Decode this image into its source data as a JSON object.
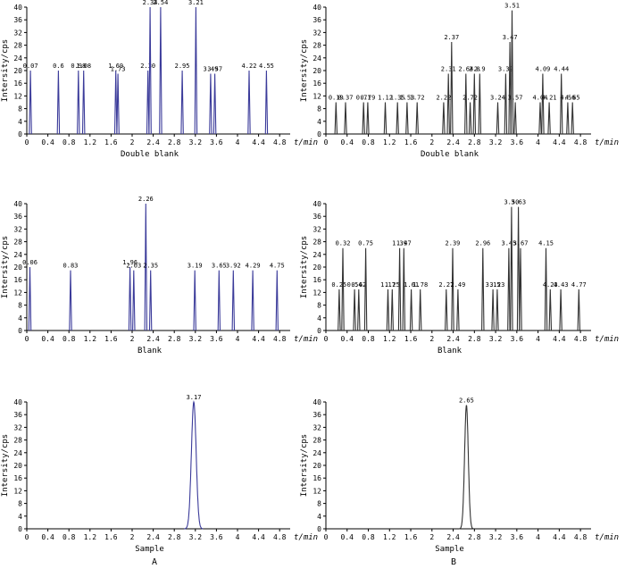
{
  "figure": {
    "colors": {
      "A": "#3b3b9a",
      "B": "#333333",
      "axis": "#000000"
    },
    "columns": [
      "A",
      "B"
    ]
  },
  "chart_data": [
    {
      "id": "A-double-blank",
      "column": "A",
      "type": "line",
      "title": "Double blank",
      "xlabel": "t/min",
      "ylabel": "Intersity/cps",
      "xlim": [
        0,
        5
      ],
      "ylim": [
        0,
        40
      ],
      "xticks": [
        "0",
        "0.4",
        "0.8",
        "1.2",
        "1.6",
        "2",
        "2.4",
        "2.8",
        "3.2",
        "3.6",
        "4",
        "4.4",
        "4.8"
      ],
      "yticks": [
        "0",
        "4",
        "8",
        "12",
        "16",
        "20",
        "24",
        "28",
        "32",
        "36",
        "40"
      ],
      "peaks": [
        {
          "t": 0.07,
          "h": 20,
          "label": "0.07"
        },
        {
          "t": 0.6,
          "h": 20,
          "label": "0.6"
        },
        {
          "t": 0.98,
          "h": 20,
          "label": "0.98"
        },
        {
          "t": 1.08,
          "h": 20,
          "label": "1.08"
        },
        {
          "t": 1.69,
          "h": 20,
          "label": "1.69"
        },
        {
          "t": 1.73,
          "h": 19,
          "label": "1.73"
        },
        {
          "t": 2.3,
          "h": 20,
          "label": "2.30"
        },
        {
          "t": 2.34,
          "h": 40,
          "label": "2.34"
        },
        {
          "t": 2.54,
          "h": 40,
          "label": "2.54"
        },
        {
          "t": 2.95,
          "h": 20,
          "label": "2.95"
        },
        {
          "t": 3.21,
          "h": 40,
          "label": "3.21"
        },
        {
          "t": 3.49,
          "h": 19,
          "label": "3.49"
        },
        {
          "t": 3.57,
          "h": 19,
          "label": "3.57"
        },
        {
          "t": 4.22,
          "h": 20,
          "label": "4.22"
        },
        {
          "t": 4.55,
          "h": 20,
          "label": "4.55"
        }
      ]
    },
    {
      "id": "B-double-blank",
      "column": "B",
      "type": "line",
      "title": "Double blank",
      "xlabel": "t/min",
      "ylabel": "Intersity/cps",
      "xlim": [
        0,
        5
      ],
      "ylim": [
        0,
        40
      ],
      "xticks": [
        "0",
        "0.4",
        "0.8",
        "1.2",
        "1.6",
        "2",
        "2.4",
        "2.8",
        "3.2",
        "3.6",
        "4",
        "4.4",
        "4.8"
      ],
      "yticks": [
        "0",
        "4",
        "8",
        "12",
        "16",
        "20",
        "24",
        "28",
        "32",
        "36",
        "40"
      ],
      "peaks": [
        {
          "t": 0.19,
          "h": 10,
          "label": "0.19"
        },
        {
          "t": 0.37,
          "h": 10,
          "label": "0.37"
        },
        {
          "t": 0.71,
          "h": 10,
          "label": "0.71"
        },
        {
          "t": 0.79,
          "h": 10,
          "label": "0.79"
        },
        {
          "t": 1.12,
          "h": 10,
          "label": "1.12"
        },
        {
          "t": 1.35,
          "h": 10,
          "label": "1.35"
        },
        {
          "t": 1.53,
          "h": 10,
          "label": "1.53"
        },
        {
          "t": 1.72,
          "h": 10,
          "label": "1.72"
        },
        {
          "t": 2.22,
          "h": 10,
          "label": "2.22"
        },
        {
          "t": 2.31,
          "h": 19,
          "label": "2.31"
        },
        {
          "t": 2.37,
          "h": 29,
          "label": "2.37"
        },
        {
          "t": 2.64,
          "h": 19,
          "label": "2.64"
        },
        {
          "t": 2.8,
          "h": 19,
          "label": "2.8"
        },
        {
          "t": 2.72,
          "h": 10,
          "label": "2.72"
        },
        {
          "t": 2.9,
          "h": 19,
          "label": "2.9"
        },
        {
          "t": 3.24,
          "h": 10,
          "label": "3.24"
        },
        {
          "t": 3.39,
          "h": 19,
          "label": "3.39"
        },
        {
          "t": 3.47,
          "h": 29,
          "label": "3.47"
        },
        {
          "t": 3.51,
          "h": 39,
          "label": "3.51"
        },
        {
          "t": 3.57,
          "h": 10,
          "label": "3.57"
        },
        {
          "t": 4.04,
          "h": 10,
          "label": "4.04"
        },
        {
          "t": 4.09,
          "h": 19,
          "label": "4.09"
        },
        {
          "t": 4.21,
          "h": 10,
          "label": "4.21"
        },
        {
          "t": 4.44,
          "h": 19,
          "label": "4.44"
        },
        {
          "t": 4.56,
          "h": 10,
          "label": "4.56"
        },
        {
          "t": 4.65,
          "h": 10,
          "label": "4.65"
        }
      ]
    },
    {
      "id": "A-blank",
      "column": "A",
      "type": "line",
      "title": "Blank",
      "xlabel": "t/min",
      "ylabel": "Intersity/cps",
      "xlim": [
        0,
        5
      ],
      "ylim": [
        0,
        40
      ],
      "xticks": [
        "0",
        "0.4",
        "0.8",
        "1.2",
        "1.6",
        "2",
        "2.4",
        "2.8",
        "3.2",
        "3.6",
        "4",
        "4.4",
        "4.8"
      ],
      "yticks": [
        "0",
        "4",
        "8",
        "12",
        "16",
        "20",
        "24",
        "28",
        "32",
        "36",
        "40"
      ],
      "peaks": [
        {
          "t": 0.06,
          "h": 20,
          "label": "0.06"
        },
        {
          "t": 0.83,
          "h": 19,
          "label": "0.83"
        },
        {
          "t": 1.96,
          "h": 20,
          "label": "1.96"
        },
        {
          "t": 2.03,
          "h": 19,
          "label": "2.03"
        },
        {
          "t": 2.26,
          "h": 40,
          "label": "2.26"
        },
        {
          "t": 2.35,
          "h": 19,
          "label": "2.35"
        },
        {
          "t": 3.19,
          "h": 19,
          "label": "3.19"
        },
        {
          "t": 3.65,
          "h": 19,
          "label": "3.65"
        },
        {
          "t": 3.92,
          "h": 19,
          "label": "3.92"
        },
        {
          "t": 4.29,
          "h": 19,
          "label": "4.29"
        },
        {
          "t": 4.75,
          "h": 19,
          "label": "4.75"
        }
      ]
    },
    {
      "id": "B-blank",
      "column": "B",
      "type": "line",
      "title": "Blank",
      "xlabel": "t/min",
      "ylabel": "Intersity/cps",
      "xlim": [
        0,
        5
      ],
      "ylim": [
        0,
        40
      ],
      "xticks": [
        "0",
        "0.4",
        "0.8",
        "1.2",
        "1.6",
        "2",
        "2.4",
        "2.8",
        "3.2",
        "3.6",
        "4",
        "4.4",
        "4.8"
      ],
      "yticks": [
        "0",
        "4",
        "8",
        "12",
        "16",
        "20",
        "24",
        "28",
        "32",
        "36",
        "40"
      ],
      "peaks": [
        {
          "t": 0.25,
          "h": 13,
          "label": "0.25"
        },
        {
          "t": 0.32,
          "h": 26,
          "label": "0.32"
        },
        {
          "t": 0.54,
          "h": 13,
          "label": "0.54"
        },
        {
          "t": 0.62,
          "h": 13,
          "label": "0.62"
        },
        {
          "t": 0.75,
          "h": 26,
          "label": "0.75"
        },
        {
          "t": 1.17,
          "h": 13,
          "label": "1.17"
        },
        {
          "t": 1.25,
          "h": 13,
          "label": "1.25"
        },
        {
          "t": 1.39,
          "h": 26,
          "label": "1.39"
        },
        {
          "t": 1.47,
          "h": 26,
          "label": "1.47"
        },
        {
          "t": 1.61,
          "h": 13,
          "label": "1.61"
        },
        {
          "t": 1.78,
          "h": 13,
          "label": "1.78"
        },
        {
          "t": 2.27,
          "h": 13,
          "label": "2.27"
        },
        {
          "t": 2.39,
          "h": 26,
          "label": "2.39"
        },
        {
          "t": 2.49,
          "h": 13,
          "label": "2.49"
        },
        {
          "t": 2.96,
          "h": 26,
          "label": "2.96"
        },
        {
          "t": 3.15,
          "h": 13,
          "label": "3.15"
        },
        {
          "t": 3.23,
          "h": 13,
          "label": "3.23"
        },
        {
          "t": 3.45,
          "h": 26,
          "label": "3.45"
        },
        {
          "t": 3.5,
          "h": 39,
          "label": "3.50"
        },
        {
          "t": 3.63,
          "h": 39,
          "label": "3.63"
        },
        {
          "t": 3.67,
          "h": 26,
          "label": "3.67"
        },
        {
          "t": 4.15,
          "h": 26,
          "label": "4.15"
        },
        {
          "t": 4.23,
          "h": 13,
          "label": "4.23"
        },
        {
          "t": 4.43,
          "h": 13,
          "label": "4.43"
        },
        {
          "t": 4.77,
          "h": 13,
          "label": "4.77"
        }
      ]
    },
    {
      "id": "A-sample",
      "column": "A",
      "type": "line",
      "title": "Sample",
      "xlabel": "t/min",
      "ylabel": "Intersity/cps",
      "xlim": [
        0,
        5
      ],
      "ylim": [
        0,
        40
      ],
      "xticks": [
        "0",
        "0.4",
        "0.8",
        "1.2",
        "1.6",
        "2",
        "2.4",
        "2.8",
        "3.2",
        "3.6",
        "4",
        "4.4",
        "4.8"
      ],
      "yticks": [
        "0",
        "4",
        "8",
        "12",
        "16",
        "20",
        "24",
        "28",
        "32",
        "36",
        "40"
      ],
      "peaks": [
        {
          "t": 3.17,
          "h": 40,
          "label": "3.17",
          "width": 0.045
        }
      ]
    },
    {
      "id": "B-sample",
      "column": "B",
      "type": "line",
      "title": "Sample",
      "xlabel": "t/min",
      "ylabel": "Intersity/cps",
      "xlim": [
        0,
        5
      ],
      "ylim": [
        0,
        40
      ],
      "xticks": [
        "0",
        "0.4",
        "0.8",
        "1.2",
        "1.6",
        "2",
        "2.4",
        "2.8",
        "3.2",
        "3.6",
        "4",
        "4.4",
        "4.8"
      ],
      "yticks": [
        "0",
        "4",
        "8",
        "12",
        "16",
        "20",
        "24",
        "28",
        "32",
        "36",
        "40"
      ],
      "peaks": [
        {
          "t": 2.65,
          "h": 39,
          "label": "2.65",
          "width": 0.035
        }
      ]
    }
  ]
}
